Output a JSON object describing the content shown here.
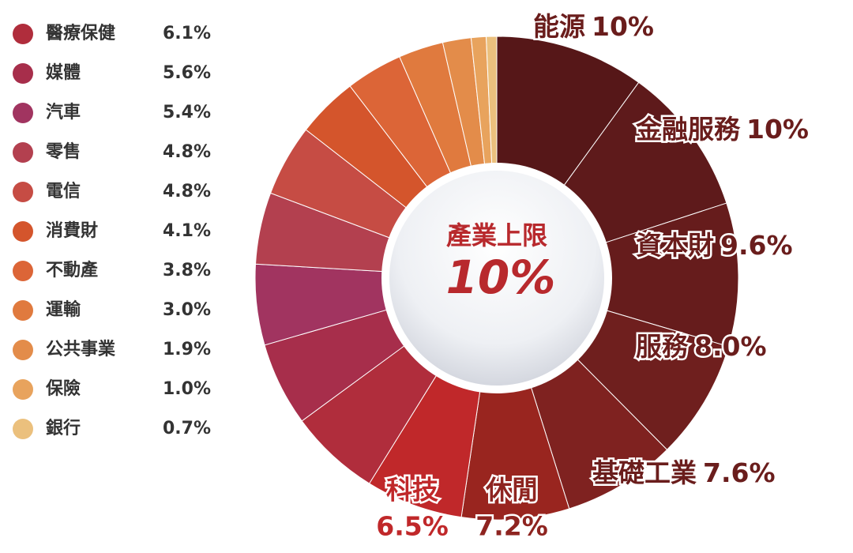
{
  "chart_data": {
    "type": "donut",
    "center_title": "產業上限",
    "center_value": "10%",
    "categories": [
      "能源",
      "金融服務",
      "資本財",
      "服務",
      "基礎工業",
      "休閒",
      "科技",
      "醫療保健",
      "媒體",
      "汽車",
      "零售",
      "電信",
      "消費財",
      "不動產",
      "運輸",
      "公共事業",
      "保險",
      "銀行"
    ],
    "values": [
      10,
      10,
      9.6,
      8.0,
      7.6,
      7.2,
      6.5,
      6.1,
      5.6,
      5.4,
      4.8,
      4.8,
      4.1,
      3.8,
      3.0,
      1.9,
      1.0,
      0.7
    ],
    "value_labels": [
      "10%",
      "10%",
      "9.6%",
      "8.0%",
      "7.6%",
      "7.2%",
      "6.5%",
      "6.1%",
      "5.6%",
      "5.4%",
      "4.8%",
      "4.8%",
      "4.1%",
      "3.8%",
      "3.0%",
      "1.9%",
      "1.0%",
      "0.7%"
    ],
    "colors": [
      "#561718",
      "#5e1a1b",
      "#661c1c",
      "#6f1f1e",
      "#7f2220",
      "#99251f",
      "#c0282a",
      "#b02d3c",
      "#a72e4b",
      "#a13460",
      "#b3404f",
      "#c64c44",
      "#d4552c",
      "#dc6537",
      "#e07a3e",
      "#e38c4a",
      "#e8a35d",
      "#ebc07d"
    ]
  }
}
